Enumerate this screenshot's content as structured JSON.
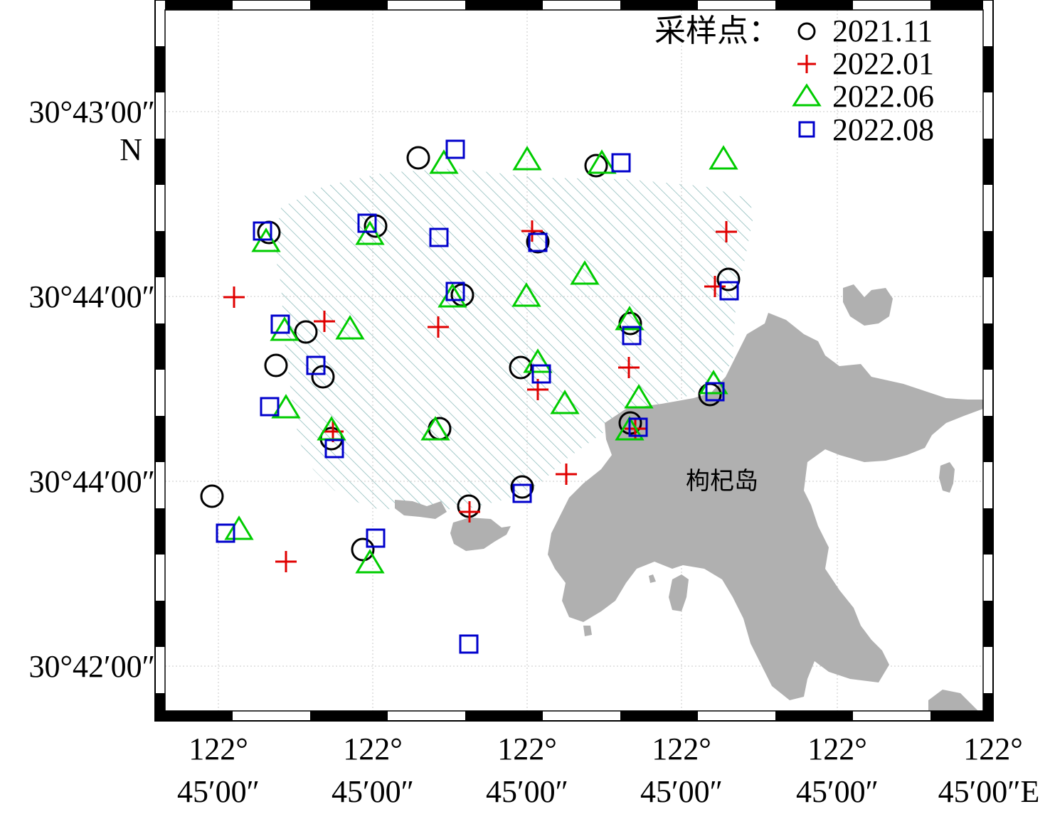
{
  "map": {
    "y_tick_labels": [
      "30°43′00″",
      "30°44′00″",
      "30°44′00″",
      "30°42′00″"
    ],
    "y_axis_suffix": "N",
    "x_tick_labels_line1": [
      "122°",
      "122°",
      "122°",
      "122°",
      "122°",
      "122°"
    ],
    "x_tick_labels_line2": [
      "45′00″",
      "45′00″",
      "45′00″",
      "45′00″",
      "45′00″",
      "45′00″E"
    ],
    "island_label": "枸杞岛",
    "colors": {
      "land": "#b0b0b0",
      "hatch": "#7fb3b3",
      "grid": "#c8c8c8",
      "circle": "#000000",
      "plus": "#e00000",
      "triangle": "#00cc00",
      "square": "#0000cc"
    }
  },
  "legend": {
    "title": "采样点：",
    "entries": [
      {
        "label": "2021.11",
        "marker": "circle"
      },
      {
        "label": "2022.01",
        "marker": "plus"
      },
      {
        "label": "2022.06",
        "marker": "triangle"
      },
      {
        "label": "2022.08",
        "marker": "square"
      }
    ]
  }
}
